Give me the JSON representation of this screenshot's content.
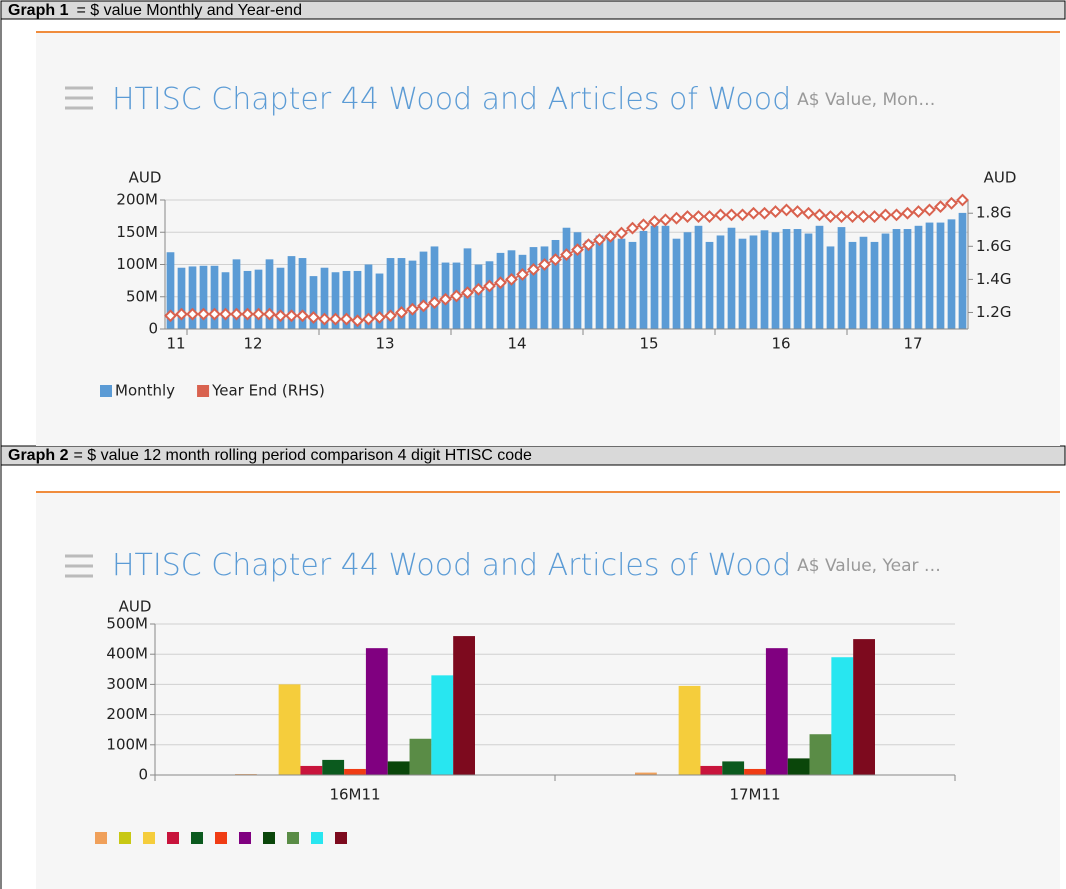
{
  "sections": [
    {
      "label": "Graph 1",
      "text": "= $ value Monthly and Year-end"
    },
    {
      "label": "Graph 2",
      "text": "= $ value 12 month rolling period comparison 4 digit HTISC code"
    }
  ],
  "chart_data": [
    {
      "type": "bar_line",
      "title": "HTISC Chapter 44 Wood and Articles of Wood",
      "subtitle": "A$ Value, Mon…",
      "y_label": "AUD",
      "y2_label": "AUD",
      "categories": [
        "11",
        null,
        null,
        null,
        null,
        null,
        null,
        "12",
        null,
        null,
        null,
        null,
        null,
        null,
        null,
        null,
        null,
        null,
        null,
        "13",
        null,
        null,
        null,
        null,
        null,
        null,
        null,
        null,
        null,
        null,
        null,
        "14",
        null,
        null,
        null,
        null,
        null,
        null,
        null,
        null,
        null,
        null,
        null,
        "15",
        null,
        null,
        null,
        null,
        null,
        null,
        null,
        null,
        null,
        null,
        null,
        "16",
        null,
        null,
        null,
        null,
        null,
        null,
        null,
        null,
        null,
        null,
        null,
        "17",
        null,
        null,
        null,
        null,
        null
      ],
      "ylim": [
        0,
        200000000
      ],
      "yticks": [
        0,
        {
          "value": 50000000,
          "label": "50M"
        },
        {
          "value": 100000000,
          "label": "100M"
        },
        {
          "value": 150000000,
          "label": "150M"
        },
        {
          "value": 200000000,
          "label": "200M"
        }
      ],
      "y2lim": [
        1100000000,
        1880000000
      ],
      "y2ticks": [
        {
          "value": 1200000000,
          "label": "1.2G"
        },
        {
          "value": 1400000000,
          "label": "1.4G"
        },
        {
          "value": 1600000000,
          "label": "1.6G"
        },
        {
          "value": 1800000000,
          "label": "1.8G"
        }
      ],
      "grid": true,
      "series": [
        {
          "name": "Monthly",
          "color": "#5b9bd5",
          "kind": "bar",
          "values": [
            119000000,
            95000000,
            97000000,
            98000000,
            98000000,
            88000000,
            108000000,
            90000000,
            92000000,
            108000000,
            95000000,
            113000000,
            110000000,
            82000000,
            95000000,
            88000000,
            90000000,
            90000000,
            100000000,
            86000000,
            110000000,
            110000000,
            106000000,
            120000000,
            128000000,
            103000000,
            103000000,
            125000000,
            100000000,
            105000000,
            118000000,
            122000000,
            115000000,
            127000000,
            128000000,
            138000000,
            157000000,
            150000000,
            137000000,
            145000000,
            145000000,
            140000000,
            135000000,
            152000000,
            160000000,
            160000000,
            140000000,
            150000000,
            160000000,
            135000000,
            145000000,
            157000000,
            140000000,
            145000000,
            153000000,
            150000000,
            155000000,
            155000000,
            148000000,
            160000000,
            128000000,
            158000000,
            135000000,
            143000000,
            135000000,
            148000000,
            155000000,
            155000000,
            160000000,
            165000000,
            165000000,
            170000000,
            180000000
          ]
        },
        {
          "name": "Year End (RHS)",
          "color": "#d9624f",
          "kind": "line",
          "axis": "y2",
          "values": [
            1180000000,
            1190000000,
            1190000000,
            1190000000,
            1190000000,
            1190000000,
            1190000000,
            1190000000,
            1190000000,
            1190000000,
            1180000000,
            1180000000,
            1180000000,
            1170000000,
            1160000000,
            1160000000,
            1160000000,
            1150000000,
            1160000000,
            1170000000,
            1180000000,
            1200000000,
            1220000000,
            1240000000,
            1260000000,
            1280000000,
            1300000000,
            1320000000,
            1340000000,
            1360000000,
            1380000000,
            1400000000,
            1430000000,
            1460000000,
            1490000000,
            1520000000,
            1550000000,
            1580000000,
            1610000000,
            1640000000,
            1660000000,
            1680000000,
            1710000000,
            1730000000,
            1750000000,
            1760000000,
            1770000000,
            1780000000,
            1780000000,
            1780000000,
            1790000000,
            1790000000,
            1790000000,
            1800000000,
            1800000000,
            1810000000,
            1820000000,
            1810000000,
            1800000000,
            1790000000,
            1780000000,
            1780000000,
            1780000000,
            1780000000,
            1780000000,
            1790000000,
            1790000000,
            1800000000,
            1810000000,
            1820000000,
            1840000000,
            1860000000,
            1880000000
          ]
        }
      ]
    },
    {
      "type": "bar",
      "title": "HTISC Chapter 44 Wood and Articles of Wood",
      "subtitle": "A$ Value, Year …",
      "y_label": "AUD",
      "categories": [
        "16M11",
        "17M11"
      ],
      "ylim": [
        0,
        500000000
      ],
      "yticks": [
        0,
        {
          "value": 100000000,
          "label": "100M"
        },
        {
          "value": 200000000,
          "label": "200M"
        },
        {
          "value": 300000000,
          "label": "300M"
        },
        {
          "value": 400000000,
          "label": "400M"
        },
        {
          "value": 500000000,
          "label": "500M"
        }
      ],
      "grid": true,
      "series": [
        {
          "color": "#f0a05a",
          "values": [
            3000000,
            8000000
          ]
        },
        {
          "color": "#c8c814",
          "values": [
            1000000,
            1000000
          ]
        },
        {
          "color": "#f5cd3c",
          "values": [
            300000000,
            295000000
          ]
        },
        {
          "color": "#c8143c",
          "values": [
            30000000,
            30000000
          ]
        },
        {
          "color": "#0b5a1e",
          "values": [
            50000000,
            45000000
          ]
        },
        {
          "color": "#f03c14",
          "values": [
            20000000,
            20000000
          ]
        },
        {
          "color": "#800080",
          "values": [
            420000000,
            420000000
          ]
        },
        {
          "color": "#0a460a",
          "values": [
            45000000,
            55000000
          ]
        },
        {
          "color": "#5a8c46",
          "values": [
            120000000,
            135000000
          ]
        },
        {
          "color": "#28e6f0",
          "values": [
            330000000,
            390000000
          ]
        },
        {
          "color": "#7d0a1e",
          "values": [
            460000000,
            450000000
          ]
        }
      ]
    }
  ]
}
